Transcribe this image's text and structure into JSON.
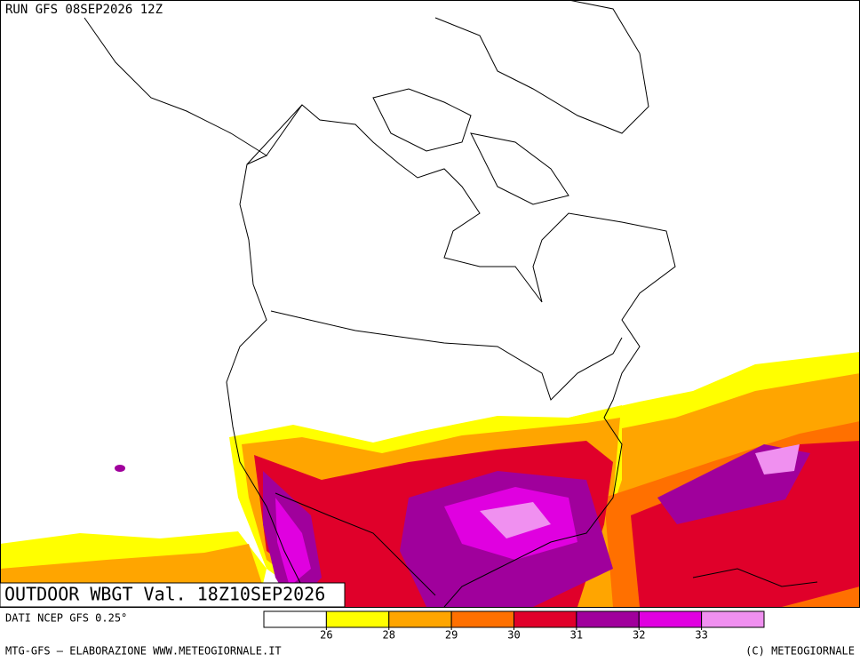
{
  "header": {
    "run": "RUN GFS 08SEP2026 12Z"
  },
  "map": {
    "title": "OUTDOOR WBGT Val. 18Z10SEP2026"
  },
  "legend": {
    "source": "DATI NCEP GFS 0.25°",
    "thresholds": [
      26,
      28,
      29,
      30,
      31,
      32,
      33
    ],
    "colors": [
      "#ffffff",
      "#ffff00",
      "#ffa500",
      "#ff7000",
      "#e0002a",
      "#a0009c",
      "#e000e0",
      "#f090f0"
    ]
  },
  "footer": {
    "left": "MTG-GFS — ELABORAZIONE WWW.METEOGIORNALE.IT",
    "right": "(C) METEOGIORNALE"
  }
}
